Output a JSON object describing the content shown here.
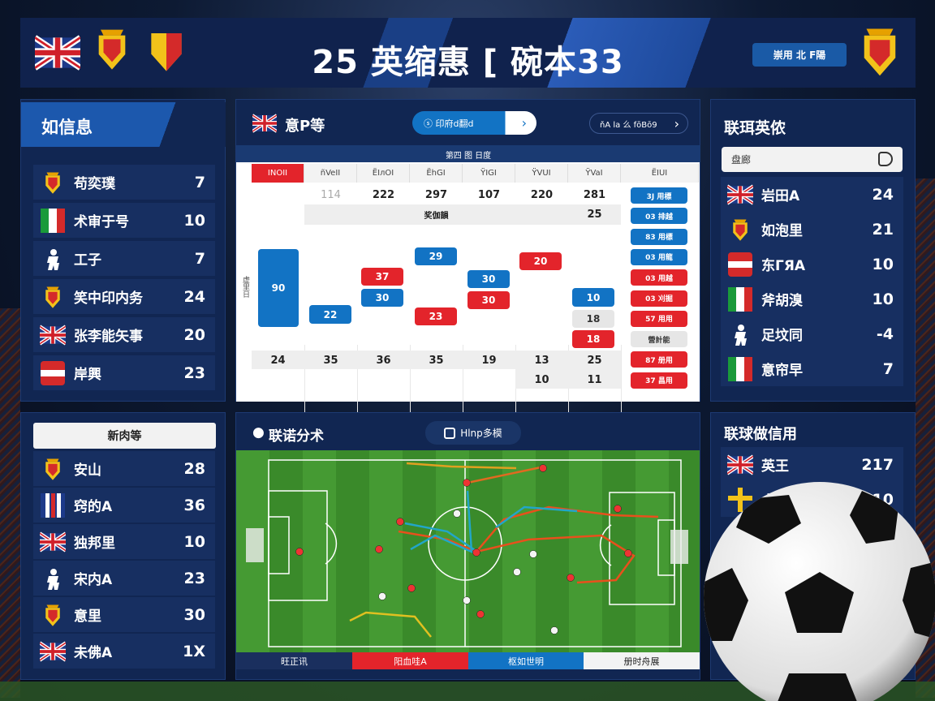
{
  "header": {
    "title": "25 英缩惠 [ 碗本33",
    "button": "崇用 北 F陽",
    "left_flags": [
      "uk-flag",
      "spain-crest",
      "shield-crest"
    ],
    "right_badge": "crest-badge"
  },
  "left_top": {
    "title": "如信息",
    "rows": [
      {
        "icon": "spain-crest",
        "label": "苟奕璞",
        "value": "7"
      },
      {
        "icon": "italy-flag",
        "label": "术审于号",
        "value": "10"
      },
      {
        "icon": "player-silhouette",
        "label": "工子",
        "value": "7"
      },
      {
        "icon": "spain-crest",
        "label": "笑中印内务",
        "value": "24"
      },
      {
        "icon": "uk-flag",
        "label": "张李能矢事",
        "value": "20"
      },
      {
        "icon": "austria-flag",
        "label": "岸興",
        "value": "23"
      }
    ]
  },
  "left_bottom": {
    "button": "新肉等",
    "rows": [
      {
        "icon": "spain-crest",
        "label": "安山",
        "value": "28"
      },
      {
        "icon": "stripes-flag",
        "label": "窍的A",
        "value": "36"
      },
      {
        "icon": "uk-flag",
        "label": "独邦里",
        "value": "10"
      },
      {
        "icon": "player-silhouette",
        "label": "宋内A",
        "value": "23"
      },
      {
        "icon": "spain-crest",
        "label": "意里",
        "value": "30"
      },
      {
        "icon": "uk-flag",
        "label": "未佛A",
        "value": "1X"
      }
    ]
  },
  "center": {
    "title": "意P等",
    "primary_button": "ⓢ 印府d翻d",
    "secondary_button": "ňA la 么 fōBō9",
    "subtitle": "第四 图 日度",
    "columns": [
      "INOII",
      "ñVeII",
      "ЁIлOI",
      "ЁhGI",
      "ŸIGI",
      "ŸVUI",
      "ŸVaI",
      "ЁIUI"
    ],
    "row1": [
      "",
      "114",
      "222",
      "297",
      "107",
      "220",
      "281"
    ],
    "band_label": "奖伽韻",
    "band_value": "25",
    "y_label": "虚里日",
    "chips": [
      "90",
      "22",
      "37",
      "30",
      "29",
      "23",
      "30",
      "30",
      "20",
      "10",
      "18",
      "18"
    ],
    "bottom_row": [
      "24",
      "35",
      "36",
      "35",
      "19",
      "13",
      "25"
    ],
    "last_row": [
      "10",
      "11"
    ],
    "side_chips": [
      {
        "label": "3J 用標",
        "color": "blue"
      },
      {
        "label": "03 排越",
        "color": "blue"
      },
      {
        "label": "83 用標",
        "color": "blue"
      },
      {
        "label": "03 用龍",
        "color": "blue"
      },
      {
        "label": "03 用越",
        "color": "red"
      },
      {
        "label": "03 刈掘",
        "color": "red"
      },
      {
        "label": "57 用用",
        "color": "red"
      },
      {
        "label": "營計能",
        "color": "gray"
      },
      {
        "label": "87 册用",
        "color": "red"
      },
      {
        "label": "37 昌用",
        "color": "red"
      }
    ]
  },
  "tactics": {
    "title": "联诺分术",
    "toggle": "Hlnp多模",
    "legend": [
      "旺正讯",
      "阳血哇A",
      "枢如世明",
      "册时舟展"
    ]
  },
  "right_top": {
    "title": "联珥英侬",
    "search_value": "盘廊",
    "rows": [
      {
        "icon": "uk-flag",
        "label": "岩田A",
        "value": "24"
      },
      {
        "icon": "spain-crest",
        "label": "如泡里",
        "value": "21"
      },
      {
        "icon": "austria-flag",
        "label": "东ГЯA",
        "value": "10"
      },
      {
        "icon": "italy-flag",
        "label": "斧胡溴",
        "value": "10"
      },
      {
        "icon": "player-silhouette",
        "label": "足坟同",
        "value": "-4"
      },
      {
        "icon": "italy-flag",
        "label": "意帘早",
        "value": "7"
      }
    ]
  },
  "right_bottom": {
    "title": "联球做信用",
    "rows": [
      {
        "icon": "uk-flag",
        "label": "英王",
        "value": "217"
      },
      {
        "icon": "sweden-cross",
        "label": "十",
        "value": "110"
      }
    ]
  },
  "colors": {
    "navy": "#112652",
    "blue": "#1273c4",
    "red": "#e3242b",
    "pitch": "#3f8a2c"
  }
}
